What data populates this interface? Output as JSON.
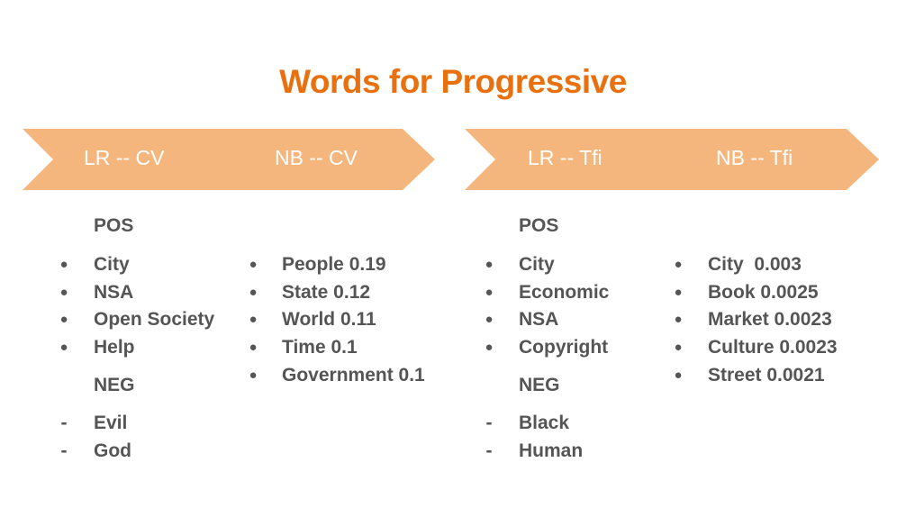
{
  "title": "Words for Progressive",
  "banners": [
    {
      "left": "LR -- CV",
      "right": "NB -- CV"
    },
    {
      "left": "LR -- Tfi",
      "right": "NB -- Tfi"
    }
  ],
  "sections": [
    {
      "pos_header": "POS",
      "pos_items": [
        "City",
        "NSA",
        "Open Society",
        "Help"
      ],
      "neg_header": "NEG",
      "neg_items": [
        "Evil",
        "God"
      ],
      "nb_items": [
        "People 0.19",
        "State 0.12",
        "World 0.11",
        "Time 0.1",
        "Government 0.1"
      ]
    },
    {
      "pos_header": "POS",
      "pos_items": [
        "City",
        "Economic",
        "NSA",
        "Copyright"
      ],
      "neg_header": "NEG",
      "neg_items": [
        "Black",
        "Human"
      ],
      "nb_items": [
        "City  0.003",
        "Book 0.0025",
        "Market 0.0023",
        "Culture 0.0023",
        "Street 0.0021"
      ]
    }
  ],
  "colors": {
    "accent": "#e8700f",
    "banner": "#f5b67d",
    "text": "#555555"
  },
  "markers": {
    "bullet": "●",
    "dash": "-"
  }
}
